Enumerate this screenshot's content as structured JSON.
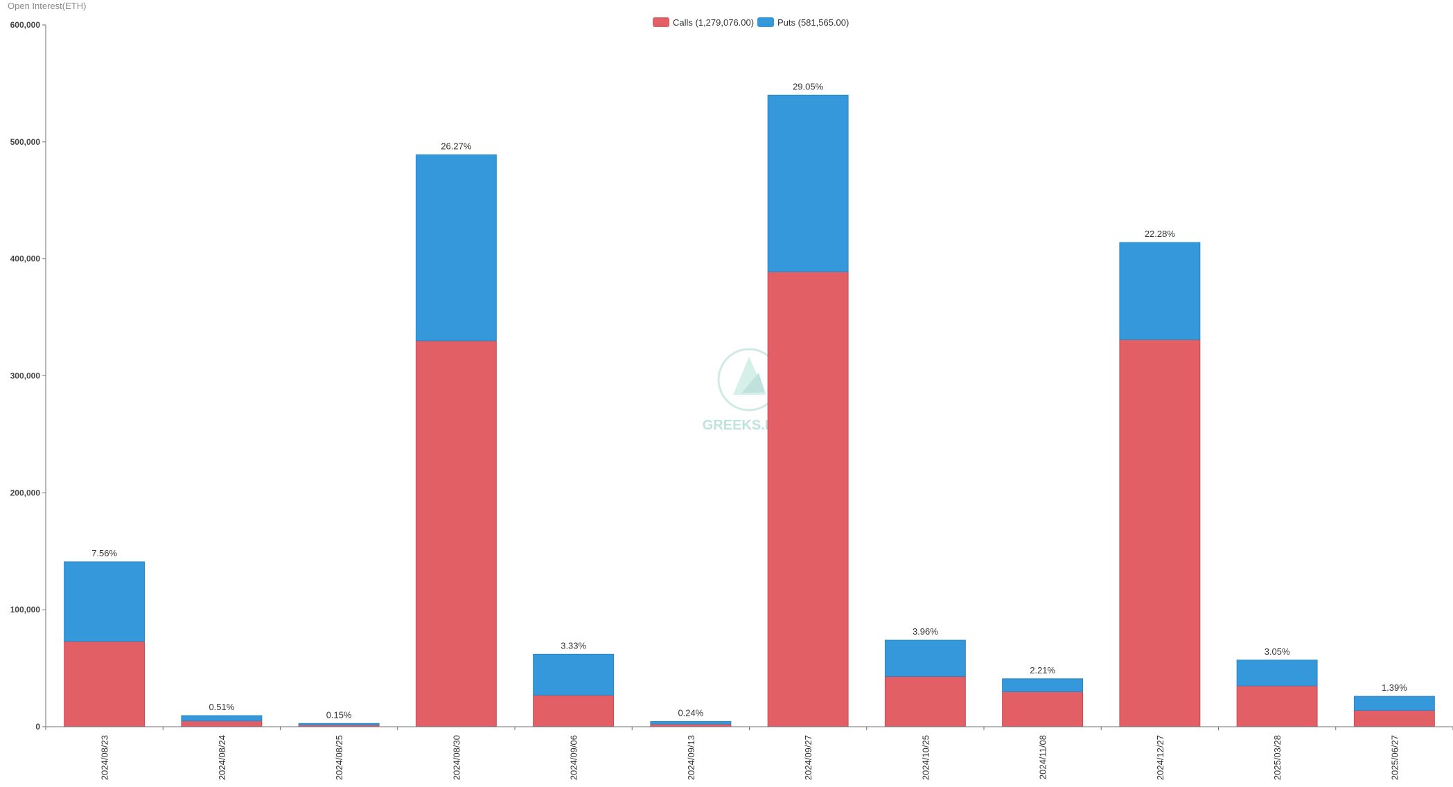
{
  "chart_data": {
    "type": "bar",
    "stacked": true,
    "ylabel": "Open Interest(ETH)",
    "ylim": [
      0,
      600000
    ],
    "yticks": [
      0,
      100000,
      200000,
      300000,
      400000,
      500000,
      600000
    ],
    "ytick_labels": [
      "0",
      "100,000",
      "200,000",
      "300,000",
      "400,000",
      "500,000",
      "600,000"
    ],
    "legend_position": "top-center",
    "categories": [
      "2024/08/23",
      "2024/08/24",
      "2024/08/25",
      "2024/08/30",
      "2024/09/06",
      "2024/09/13",
      "2024/09/27",
      "2024/10/25",
      "2024/11/08",
      "2024/12/27",
      "2025/03/28",
      "2025/06/27"
    ],
    "series": [
      {
        "name": "Calls",
        "legend_label": "Calls (1,279,076.00)",
        "color": "#e35f66",
        "values": [
          73000,
          5000,
          1600,
          330000,
          27000,
          2300,
          389000,
          43000,
          30000,
          331000,
          35000,
          14000
        ]
      },
      {
        "name": "Puts",
        "legend_label": "Puts (581,565.00)",
        "color": "#3498db",
        "values": [
          68000,
          4500,
          1200,
          159000,
          35000,
          2200,
          151000,
          31000,
          11000,
          83000,
          22000,
          12000
        ]
      }
    ],
    "bar_labels": [
      "7.56%",
      "0.51%",
      "0.15%",
      "26.27%",
      "3.33%",
      "0.24%",
      "29.05%",
      "3.96%",
      "2.21%",
      "22.28%",
      "3.05%",
      "1.39%"
    ]
  },
  "watermark": {
    "text": "GREEKS.LIVE",
    "color": "#bfe3dc"
  }
}
